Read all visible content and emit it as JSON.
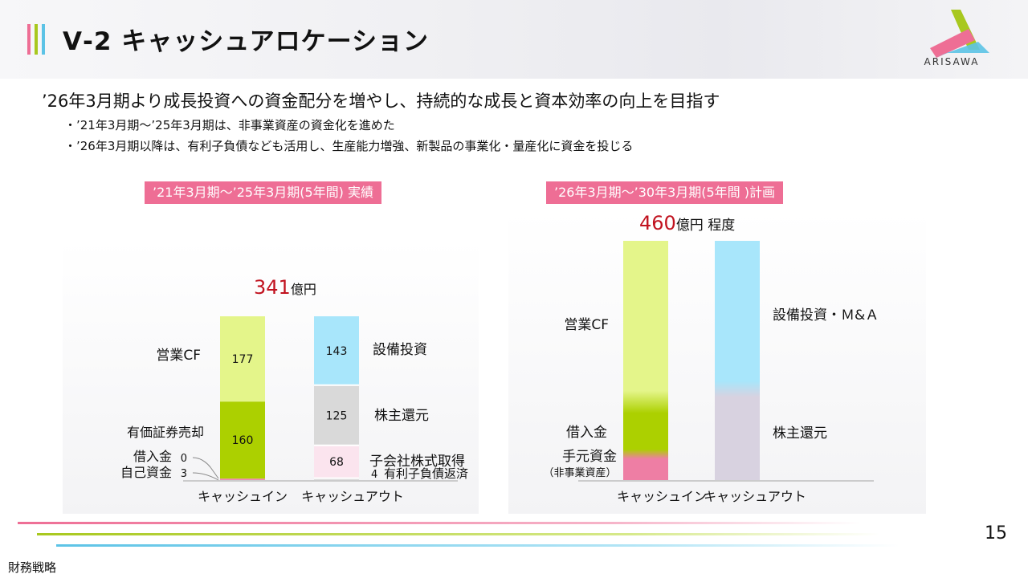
{
  "header": {
    "title": "Ⅴ-2  キャッシュアロケーション",
    "logo_text": "ARISAWA",
    "bar_colors": [
      "#ee6e95",
      "#a8c81e",
      "#5cc3e6"
    ]
  },
  "lead": "’26年3月期より成長投資への資金配分を増やし、持続的な成長と資本効率の向上を目指す",
  "bullets": [
    "・’21年3月期～’25年3月期は、非事業資産の資金化を進めた",
    "・’26年3月期以降は、有利子負債なども活用し、生産能力増強、新製品の事業化・量産化に資金を投じる"
  ],
  "chart_data": [
    {
      "type": "bar",
      "stacked": true,
      "title": "’21年3月期～’25年3月期(5年間) 実績",
      "total_value": "341",
      "total_unit": "億円",
      "categories": [
        "キャッシュイン",
        "キャッシュアウト"
      ],
      "series": [
        {
          "name": "営業CF",
          "bar": "キャッシュイン",
          "value": 177,
          "color": "#e4f58a",
          "value_label": "177"
        },
        {
          "name": "有価証券売却",
          "bar": "キャッシュイン",
          "value": 160,
          "color": "#acd000",
          "value_label": "160"
        },
        {
          "name": "借入金",
          "bar": "キャッシュイン",
          "value": 0,
          "color": "#ee6e95",
          "value_label": "0"
        },
        {
          "name": "自己資金",
          "bar": "キャッシュイン",
          "value": 3,
          "color": "#f08ab0",
          "value_label": "3"
        },
        {
          "name": "設備投資",
          "bar": "キャッシュアウト",
          "value": 143,
          "color": "#a8e6fb",
          "value_label": "143"
        },
        {
          "name": "株主還元",
          "bar": "キャッシュアウト",
          "value": 125,
          "color": "#d9d9d9",
          "value_label": "125"
        },
        {
          "name": "子会社株式取得",
          "bar": "キャッシュアウト",
          "value": 68,
          "color": "#fbe4ee",
          "value_label": "68"
        },
        {
          "name": "有利子負債返済",
          "bar": "キャッシュアウト",
          "value": 4,
          "color": "#dcdcdc",
          "value_label": "4"
        }
      ]
    },
    {
      "type": "bar",
      "stacked": true,
      "title": "’26年3月期～’30年3月期(5年間 )計画",
      "total_value": "460",
      "total_unit": "億円 程度",
      "categories": [
        "キャッシュイン",
        "キャッシュアウト"
      ],
      "series": [
        {
          "name": "営業CF",
          "bar": "キャッシュイン",
          "value": 310,
          "color": "#e4f58a"
        },
        {
          "name": "借入金",
          "bar": "キャッシュイン",
          "value": 100,
          "color": "#acd000"
        },
        {
          "name": "手元資金",
          "bar": "キャッシュイン",
          "value": 50,
          "color": "#ee7ea4",
          "sublabel": "（非事業資産）"
        },
        {
          "name": "設備投資・M&A",
          "bar": "キャッシュアウト",
          "value": 285,
          "color": "#a8e6fb"
        },
        {
          "name": "株主還元",
          "bar": "キャッシュアウト",
          "value": 175,
          "color": "#d8d2e0"
        }
      ]
    }
  ],
  "footer": {
    "page_number": "15",
    "section": "財務戦略",
    "line_colors": [
      "#ee6e95",
      "#a8c81e",
      "#5cc3e6"
    ]
  }
}
